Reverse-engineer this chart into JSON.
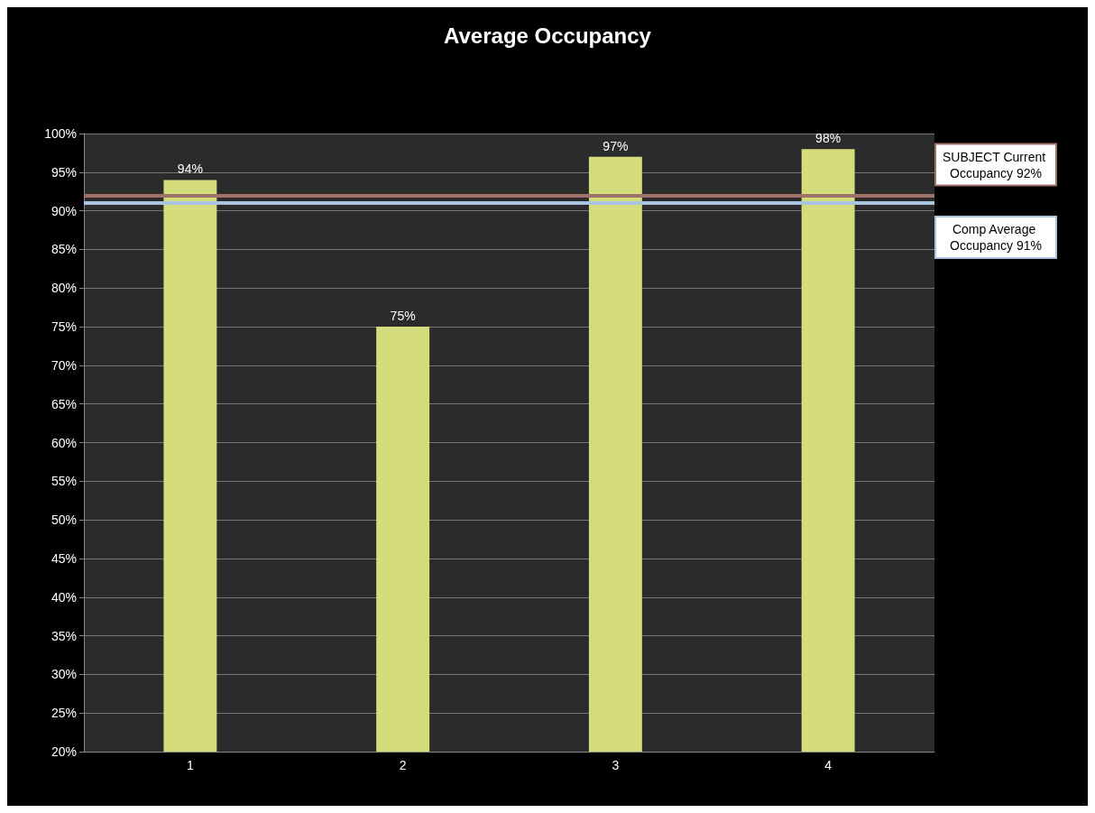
{
  "chart_data": {
    "type": "bar",
    "title": "Average Occupancy",
    "categories": [
      "1",
      "2",
      "3",
      "4"
    ],
    "values": [
      94,
      75,
      97,
      98
    ],
    "value_labels": [
      "94%",
      "75%",
      "97%",
      "98%"
    ],
    "color": "#d4dc7c",
    "ylim": [
      20,
      100
    ],
    "yticks": [
      {
        "value": 20,
        "label": "20%"
      },
      {
        "value": 25,
        "label": "25%"
      },
      {
        "value": 30,
        "label": "30%"
      },
      {
        "value": 35,
        "label": "35%"
      },
      {
        "value": 40,
        "label": "40%"
      },
      {
        "value": 45,
        "label": "45%"
      },
      {
        "value": 50,
        "label": "50%"
      },
      {
        "value": 55,
        "label": "55%"
      },
      {
        "value": 60,
        "label": "60%"
      },
      {
        "value": 65,
        "label": "65%"
      },
      {
        "value": 70,
        "label": "70%"
      },
      {
        "value": 75,
        "label": "75%"
      },
      {
        "value": 80,
        "label": "80%"
      },
      {
        "value": 85,
        "label": "85%"
      },
      {
        "value": 90,
        "label": "90%"
      },
      {
        "value": 95,
        "label": "95%"
      },
      {
        "value": 100,
        "label": "100%"
      }
    ],
    "ref_lines": [
      {
        "axis": "y",
        "value": 92,
        "label": "SUBJECT Current Occupancy 92%",
        "color": "#a0706a"
      },
      {
        "axis": "y",
        "value": 91,
        "label": "Comp Average Occupancy 91%",
        "color": "#a9c4e0"
      }
    ],
    "grid": "y"
  }
}
